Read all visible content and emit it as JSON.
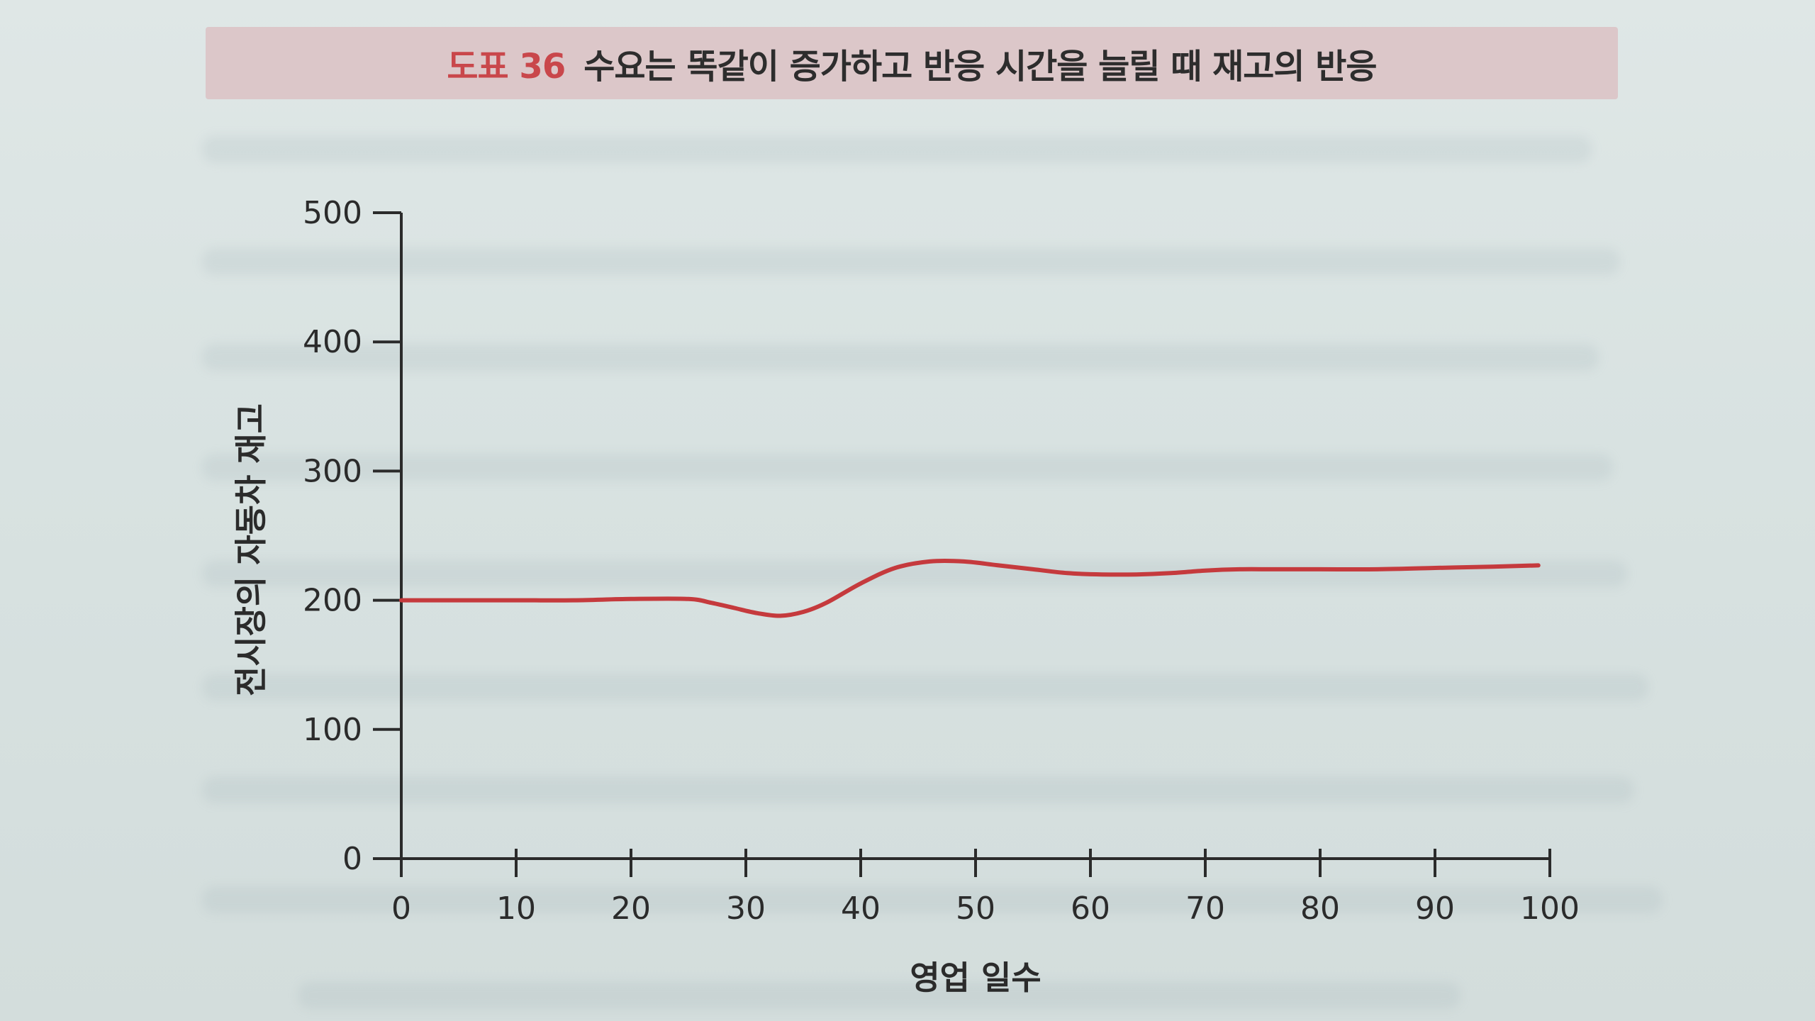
{
  "header": {
    "figure_number": "도표 36",
    "title_text": "수요는 똑같이 증가하고 반응 시간을 늘릴 때 재고의 반응"
  },
  "colors": {
    "title_band": "#dcc7c9",
    "figure_number": "#c9474b",
    "series_line": "#c53a3d",
    "axis": "#2b2b2b"
  },
  "chart_data": {
    "type": "line",
    "title": "수요는 똑같이 증가하고 반응 시간을 늘릴 때 재고의 반응",
    "xlabel": "영업 일수",
    "ylabel": "전시장의 자동차 재고",
    "xlim": [
      0,
      100
    ],
    "ylim": [
      0,
      500
    ],
    "x_ticks": [
      0,
      10,
      20,
      30,
      40,
      50,
      60,
      70,
      80,
      90,
      100
    ],
    "y_ticks": [
      0,
      100,
      200,
      300,
      400,
      500
    ],
    "grid": false,
    "legend": "none",
    "series": [
      {
        "x": [
          0,
          5,
          10,
          15,
          20,
          25,
          27,
          29,
          31,
          33,
          35,
          37,
          40,
          43,
          46,
          49,
          52,
          55,
          58,
          61,
          64,
          67,
          70,
          73,
          76,
          80,
          85,
          90,
          95,
          99
        ],
        "y": [
          200,
          200,
          200,
          200,
          201,
          201,
          198,
          194,
          190,
          188,
          191,
          198,
          213,
          225,
          230,
          230,
          227,
          224,
          221,
          220,
          220,
          221,
          223,
          224,
          224,
          224,
          224,
          225,
          226,
          227
        ]
      }
    ]
  }
}
